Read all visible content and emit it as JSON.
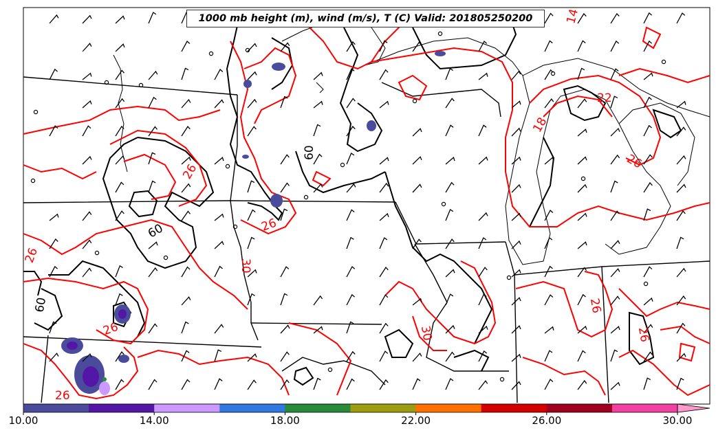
{
  "map": {
    "title": "1000 mb height (m), wind (m/s), T (C) Valid: 201805250200",
    "contour_colors": {
      "height": "#000000",
      "temperature": "#ff0000"
    },
    "height_labels": [
      "60",
      "60",
      "60"
    ],
    "temperature_labels": [
      "14",
      "22",
      "18",
      "26",
      "26",
      "26",
      "30",
      "30",
      "26",
      "26",
      "26",
      "26",
      "26"
    ]
  },
  "colorbar": {
    "min": 10,
    "max": 30,
    "extend": "max",
    "bins": [
      {
        "color": "#4b4b9c"
      },
      {
        "color": "#5316a6"
      },
      {
        "color": "#cc99ff"
      },
      {
        "color": "#3178e0"
      },
      {
        "color": "#2a8a3c"
      },
      {
        "color": "#9c9c10"
      },
      {
        "color": "#ff7000"
      },
      {
        "color": "#d40000"
      },
      {
        "color": "#a00020"
      },
      {
        "color": "#f040a0"
      }
    ],
    "extend_color": "#ff99cc",
    "tick_values": [
      10,
      14,
      18,
      22,
      26,
      30
    ],
    "tick_labels": [
      "10.00",
      "14.00",
      "18.00",
      "22.00",
      "26.00",
      "30.00"
    ]
  }
}
